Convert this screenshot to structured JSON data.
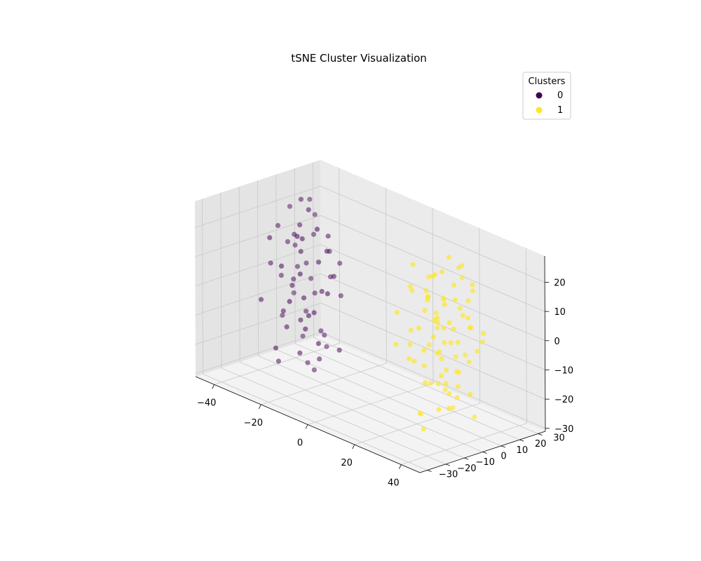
{
  "chart_data": {
    "type": "scatter",
    "projection": "3d",
    "title": "tSNE Cluster Visualization",
    "xlabel": "",
    "ylabel": "",
    "zlabel": "",
    "xlim": [
      -48,
      48
    ],
    "ylim": [
      -34,
      34
    ],
    "zlim": [
      -31,
      29
    ],
    "x_ticks": [
      -40,
      -20,
      0,
      20,
      40
    ],
    "y_ticks": [
      -30,
      -20,
      -10,
      0,
      10,
      20,
      30
    ],
    "z_ticks": [
      -30,
      -20,
      -10,
      0,
      10,
      20
    ],
    "grid": true,
    "legend": {
      "title": "Clusters",
      "placement": "top-right",
      "entries": [
        {
          "label": "0",
          "color": "#440154"
        },
        {
          "label": "1",
          "color": "#fde725"
        }
      ]
    },
    "series": [
      {
        "name": "0",
        "color": "#440154",
        "points": [
          [
            -30,
            0,
            20
          ],
          [
            -34,
            2,
            15
          ],
          [
            -36,
            5,
            10
          ],
          [
            -28,
            -2,
            12
          ],
          [
            -32,
            6,
            5
          ],
          [
            -25,
            -5,
            18
          ],
          [
            -38,
            0,
            0
          ],
          [
            -30,
            8,
            -5
          ],
          [
            -27,
            -8,
            2
          ],
          [
            -34,
            -4,
            -10
          ],
          [
            -40,
            3,
            -15
          ],
          [
            -29,
            10,
            -18
          ],
          [
            -22,
            -10,
            8
          ],
          [
            -36,
            9,
            -22
          ],
          [
            -25,
            4,
            -25
          ],
          [
            -31,
            -12,
            -20
          ],
          [
            -20,
            2,
            14
          ],
          [
            -26,
            -3,
            -3
          ],
          [
            -33,
            12,
            20
          ],
          [
            -23,
            -6,
            -12
          ],
          [
            -37,
            -7,
            6
          ],
          [
            -28,
            14,
            0
          ],
          [
            -24,
            0,
            -8
          ],
          [
            -39,
            6,
            22
          ],
          [
            -21,
            7,
            4
          ],
          [
            -35,
            -10,
            16
          ],
          [
            -30,
            4,
            -28
          ],
          [
            -26,
            11,
            10
          ],
          [
            -32,
            -1,
            1
          ],
          [
            -19,
            -4,
            -16
          ],
          [
            -27,
            1,
            26
          ],
          [
            -33,
            7,
            -12
          ],
          [
            -22,
            12,
            -4
          ],
          [
            -38,
            -11,
            -6
          ],
          [
            -24,
            -9,
            20
          ],
          [
            -29,
            13,
            -24
          ],
          [
            -36,
            1,
            12
          ],
          [
            -18,
            6,
            -20
          ],
          [
            -31,
            -6,
            -14
          ],
          [
            -25,
            9,
            16
          ],
          [
            -34,
            11,
            -2
          ],
          [
            -21,
            -2,
            22
          ],
          [
            -28,
            5,
            -30
          ],
          [
            -37,
            -3,
            18
          ],
          [
            -23,
            3,
            -1
          ],
          [
            -30,
            -10,
            8
          ],
          [
            -26,
            8,
            -18
          ],
          [
            -35,
            5,
            3
          ],
          [
            -20,
            -8,
            -6
          ],
          [
            -32,
            10,
            14
          ],
          [
            -27,
            -4,
            -22
          ],
          [
            -39,
            8,
            -8
          ],
          [
            -22,
            0,
            10
          ],
          [
            -33,
            -8,
            -26
          ],
          [
            -24,
            14,
            6
          ],
          [
            -29,
            -1,
            -12
          ],
          [
            -36,
            13,
            24
          ],
          [
            -19,
            1,
            0
          ],
          [
            -31,
            2,
            28
          ],
          [
            -25,
            -12,
            -2
          ]
        ]
      },
      {
        "name": "1",
        "color": "#fde725",
        "points": [
          [
            20,
            10,
            18
          ],
          [
            25,
            8,
            12
          ],
          [
            30,
            5,
            6
          ],
          [
            22,
            12,
            0
          ],
          [
            28,
            2,
            -4
          ],
          [
            35,
            6,
            10
          ],
          [
            18,
            0,
            14
          ],
          [
            32,
            -2,
            -10
          ],
          [
            26,
            14,
            -14
          ],
          [
            24,
            -4,
            4
          ],
          [
            38,
            10,
            -2
          ],
          [
            21,
            6,
            -18
          ],
          [
            30,
            12,
            20
          ],
          [
            34,
            -6,
            -20
          ],
          [
            27,
            0,
            22
          ],
          [
            19,
            16,
            8
          ],
          [
            36,
            2,
            2
          ],
          [
            23,
            -8,
            -6
          ],
          [
            29,
            8,
            -24
          ],
          [
            33,
            14,
            16
          ],
          [
            25,
            -2,
            10
          ],
          [
            40,
            4,
            8
          ],
          [
            20,
            4,
            -12
          ],
          [
            31,
            -10,
            0
          ],
          [
            26,
            10,
            26
          ],
          [
            37,
            -4,
            -14
          ],
          [
            22,
            -6,
            18
          ],
          [
            28,
            16,
            -8
          ],
          [
            35,
            12,
            -26
          ],
          [
            24,
            6,
            2
          ],
          [
            32,
            0,
            14
          ],
          [
            19,
            -10,
            -2
          ],
          [
            30,
            -6,
            24
          ],
          [
            36,
            8,
            -6
          ],
          [
            21,
            14,
            -22
          ],
          [
            27,
            -12,
            6
          ],
          [
            34,
            4,
            -18
          ],
          [
            23,
            2,
            12
          ],
          [
            29,
            -8,
            -28
          ],
          [
            38,
            -2,
            18
          ],
          [
            25,
            12,
            -4
          ],
          [
            31,
            6,
            4
          ],
          [
            20,
            -2,
            24
          ],
          [
            33,
            -12,
            -10
          ],
          [
            26,
            4,
            -16
          ],
          [
            37,
            14,
            0
          ],
          [
            22,
            8,
            6
          ],
          [
            30,
            10,
            -12
          ],
          [
            28,
            -4,
            16
          ],
          [
            35,
            -8,
            12
          ],
          [
            24,
            16,
            -10
          ],
          [
            32,
            2,
            -22
          ],
          [
            21,
            -12,
            10
          ],
          [
            36,
            0,
            22
          ],
          [
            27,
            6,
            -2
          ],
          [
            39,
            12,
            4
          ],
          [
            23,
            10,
            20
          ],
          [
            29,
            2,
            -6
          ],
          [
            34,
            10,
            8
          ],
          [
            26,
            -6,
            -24
          ],
          [
            31,
            14,
            12
          ],
          [
            20,
            2,
            -28
          ],
          [
            38,
            6,
            -16
          ],
          [
            25,
            -10,
            0
          ],
          [
            33,
            8,
            26
          ],
          [
            22,
            -4,
            -8
          ],
          [
            30,
            16,
            2
          ],
          [
            35,
            -10,
            6
          ],
          [
            24,
            0,
            16
          ],
          [
            28,
            12,
            -18
          ],
          [
            37,
            2,
            14
          ],
          [
            21,
            10,
            2
          ],
          [
            32,
            -4,
            -2
          ],
          [
            27,
            14,
            22
          ],
          [
            34,
            -2,
            -12
          ],
          [
            23,
            12,
            -14
          ],
          [
            29,
            -2,
            8
          ],
          [
            36,
            10,
            20
          ],
          [
            19,
            8,
            -6
          ],
          [
            31,
            -8,
            18
          ]
        ]
      }
    ]
  }
}
